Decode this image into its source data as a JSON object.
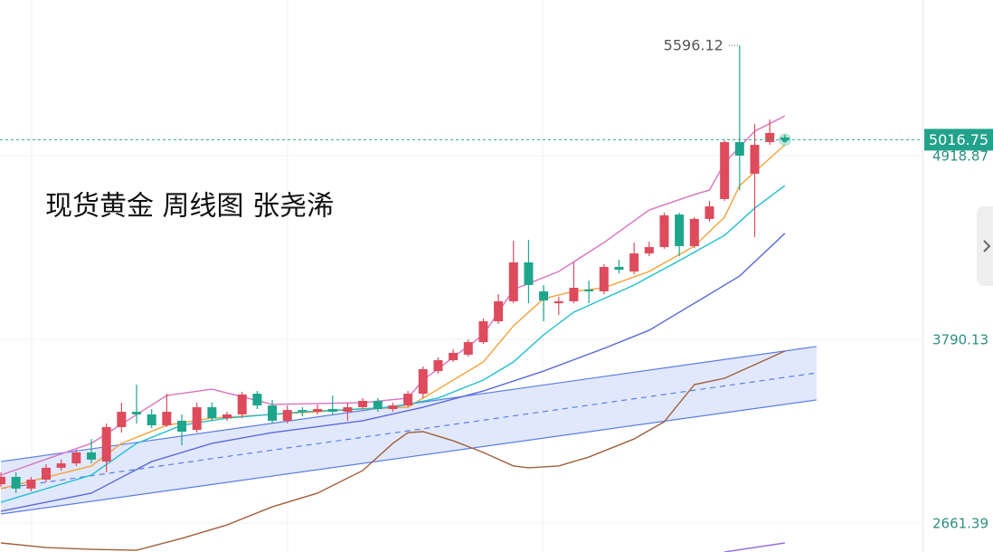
{
  "chart_data": {
    "type": "candlestick",
    "title": "现货黄金 周线图 张尧浠",
    "up_color": "#dd4b5c",
    "down_color": "#1ea58c",
    "ylim": [
      2483.4,
      5875.3
    ],
    "yticks": [
      2661.39,
      3790.13,
      4918.87
    ],
    "grid": true,
    "candles": {
      "open": [
        2900,
        2945,
        2873,
        2928,
        3001,
        3028,
        3095,
        3039,
        3251,
        3345,
        3329,
        3262,
        3290,
        3234,
        3373,
        3306,
        3329,
        3456,
        3384,
        3290,
        3356,
        3345,
        3362,
        3345,
        3373,
        3412,
        3362,
        3384,
        3456,
        3595,
        3662,
        3696,
        3773,
        3901,
        4024,
        4263,
        4085,
        4012,
        4024,
        4096,
        4085,
        4235,
        4207,
        4318,
        4357,
        4557,
        4363,
        4530,
        4652,
        5002,
        4808,
        5002,
        5030
      ],
      "high": [
        2973,
        2973,
        2945,
        3023,
        3051,
        3112,
        3178,
        3273,
        3401,
        3512,
        3362,
        3456,
        3329,
        3401,
        3401,
        3345,
        3468,
        3473,
        3418,
        3384,
        3373,
        3390,
        3445,
        3401,
        3429,
        3429,
        3401,
        3473,
        3623,
        3679,
        3729,
        3790,
        3918,
        4068,
        4396,
        4402,
        4124,
        4051,
        4263,
        4151,
        4251,
        4279,
        4385,
        4390,
        4568,
        4568,
        4541,
        4641,
        5013,
        5596.12,
        5113,
        5141,
        5047
      ],
      "low": [
        2884,
        2845,
        2856,
        2912,
        2984,
        3012,
        3028,
        2973,
        3217,
        3273,
        3245,
        3251,
        3140,
        3217,
        3290,
        3290,
        3306,
        3362,
        3273,
        3273,
        3317,
        3329,
        3329,
        3290,
        3362,
        3345,
        3345,
        3373,
        3429,
        3579,
        3651,
        3684,
        3762,
        3885,
        4012,
        4012,
        3901,
        3940,
        4012,
        4012,
        4068,
        4196,
        4190,
        4301,
        4346,
        4301,
        4352,
        4513,
        4641,
        4707,
        4418,
        4985,
        5013
      ],
      "close": [
        2945,
        2873,
        2928,
        3001,
        3028,
        3095,
        3051,
        3251,
        3345,
        3329,
        3262,
        3345,
        3223,
        3373,
        3306,
        3329,
        3451,
        3384,
        3290,
        3356,
        3345,
        3362,
        3345,
        3373,
        3412,
        3362,
        3384,
        3456,
        3607,
        3662,
        3707,
        3773,
        3901,
        4024,
        4263,
        4124,
        4029,
        4024,
        4107,
        4085,
        4235,
        4218,
        4318,
        4357,
        4552,
        4363,
        4530,
        4607,
        5002,
        4919,
        4985,
        5058,
        5016.75
      ]
    },
    "lines": [
      {
        "color": "#d873c4",
        "x": [
          0,
          6,
          11,
          14,
          18,
          24,
          27,
          28,
          32,
          34,
          37,
          40,
          43,
          46,
          47,
          48,
          50,
          52
        ],
        "values": [
          2956,
          3151,
          3445,
          3484,
          3390,
          3401,
          3429,
          3540,
          3818,
          4096,
          4207,
          4385,
          4585,
          4680,
          4707,
          4874,
          5069,
          5163
        ]
      },
      {
        "color": "#f4a13a",
        "x": [
          0,
          6,
          8,
          11,
          14,
          18,
          24,
          27,
          29,
          32,
          34,
          36,
          38,
          40,
          43,
          46,
          48,
          49,
          51,
          52
        ],
        "values": [
          2873,
          3012,
          3151,
          3262,
          3306,
          3329,
          3362,
          3373,
          3484,
          3651,
          3873,
          4040,
          4085,
          4107,
          4207,
          4363,
          4541,
          4735,
          4902,
          4985
        ]
      },
      {
        "color": "#1fbfcf",
        "x": [
          0,
          6,
          9,
          12,
          15,
          20,
          26,
          29,
          32,
          34,
          36,
          38,
          42,
          45,
          48,
          50,
          52
        ],
        "values": [
          2789,
          2956,
          3151,
          3262,
          3306,
          3345,
          3373,
          3429,
          3540,
          3651,
          3818,
          3957,
          4124,
          4274,
          4429,
          4596,
          4735
        ]
      },
      {
        "color": "#5d6ad8",
        "x": [
          0,
          6,
          10,
          14,
          18,
          24,
          28,
          32,
          36,
          40,
          43,
          46,
          49,
          52
        ],
        "values": [
          2734,
          2845,
          3039,
          3151,
          3217,
          3290,
          3373,
          3473,
          3595,
          3734,
          3846,
          4012,
          4179,
          4441
        ]
      },
      {
        "color": "#a05f3a",
        "x": [
          0,
          3,
          6,
          9,
          12,
          15,
          18,
          21,
          24,
          26,
          27,
          28,
          30,
          32,
          34,
          35,
          37,
          39,
          42,
          44,
          46,
          48,
          52
        ],
        "values": [
          2539,
          2511,
          2500,
          2494,
          2567,
          2650,
          2761,
          2845,
          2984,
          3151,
          3217,
          3223,
          3167,
          3095,
          3012,
          3001,
          3012,
          3067,
          3178,
          3284,
          3512,
          3551,
          3718
        ]
      },
      {
        "color": "#9a6ee0",
        "x": [
          48,
          52
        ],
        "values": [
          2483.4,
          2539
        ]
      }
    ],
    "channel": {
      "color": "#5b7ee5",
      "fill": "#dce4fb",
      "x": [
        0,
        54.1
      ],
      "upper": [
        3039,
        3746
      ],
      "middle": [
        2873,
        3584
      ],
      "lower": [
        2717,
        3418
      ]
    }
  }
}
